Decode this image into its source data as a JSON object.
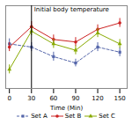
{
  "chart_data": {
    "type": "line",
    "x": [
      0,
      30,
      60,
      90,
      120,
      150
    ],
    "xlabel": "Time (Min)",
    "xlim": [
      -5,
      160
    ],
    "xticks": [
      0,
      30,
      60,
      90,
      120,
      150
    ],
    "ylim": [
      35.85,
      37.15
    ],
    "yticks": [],
    "tick_labels": "x",
    "grid": false,
    "legend": "bottom",
    "annotations": [
      {
        "x": 30,
        "text": "Initial body temperature"
      }
    ],
    "series": [
      {
        "name": "Set A",
        "color": "#5566aa",
        "marker": "square",
        "line_style": "dashed",
        "values": [
          36.55,
          36.5,
          36.35,
          36.25,
          36.5,
          36.42
        ],
        "errors": [
          0.08,
          0.07,
          0.07,
          0.06,
          0.07,
          0.07
        ]
      },
      {
        "name": "Set B",
        "color": "#cc2222",
        "marker": "circle",
        "line_style": "solid",
        "values": [
          36.5,
          36.82,
          36.62,
          36.58,
          36.78,
          36.88
        ],
        "errors": [
          0.07,
          0.08,
          0.07,
          0.07,
          0.07,
          0.07
        ]
      },
      {
        "name": "Set C",
        "color": "#88aa00",
        "marker": "triangle",
        "line_style": "solid",
        "values": [
          36.15,
          36.75,
          36.55,
          36.45,
          36.72,
          36.55
        ],
        "errors": [
          0.07,
          0.07,
          0.07,
          0.07,
          0.07,
          0.07
        ]
      }
    ]
  }
}
